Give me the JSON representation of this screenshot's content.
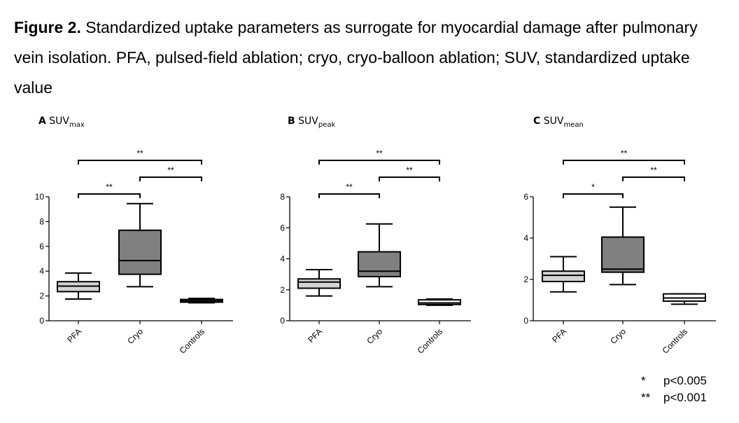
{
  "caption": {
    "label": "Figure 2.",
    "text": " Standardized uptake parameters as surrogate for myocardial damage after pulmonary vein isolation. PFA, pulsed-field ablation; cryo, cryo-balloon ablation; SUV, standardized uptake value"
  },
  "legend": [
    {
      "symbol": "*",
      "text": "p<0.005"
    },
    {
      "symbol": "**",
      "text": "p<0.001"
    }
  ],
  "colors": {
    "PFA": "#d4d4d4",
    "Cryo": "#808080",
    "Controls": "#ffffff",
    "stroke": "#000000"
  },
  "chart_data": [
    {
      "type": "boxplot",
      "panel": "A",
      "title_main": "SUV",
      "title_sub": "max",
      "categories": [
        "PFA",
        "Cryo",
        "Controls"
      ],
      "ylim": [
        0,
        10
      ],
      "yticks": [
        0,
        2,
        4,
        6,
        8,
        10
      ],
      "boxes": [
        {
          "name": "PFA",
          "min": 1.75,
          "q1": 2.35,
          "median": 2.8,
          "q3": 3.15,
          "max": 3.85
        },
        {
          "name": "Cryo",
          "min": 2.75,
          "q1": 3.75,
          "median": 4.85,
          "q3": 7.3,
          "max": 9.45
        },
        {
          "name": "Controls",
          "min": 1.45,
          "q1": 1.5,
          "median": 1.6,
          "q3": 1.72,
          "max": 1.8
        }
      ],
      "significance": [
        {
          "from": "PFA",
          "to": "Cryo",
          "label": "**"
        },
        {
          "from": "Cryo",
          "to": "Controls",
          "label": "**"
        },
        {
          "from": "PFA",
          "to": "Controls",
          "label": "**"
        }
      ]
    },
    {
      "type": "boxplot",
      "panel": "B",
      "title_main": "SUV",
      "title_sub": "peak",
      "categories": [
        "PFA",
        "Cryo",
        "Controls"
      ],
      "ylim": [
        0,
        8
      ],
      "yticks": [
        0,
        2,
        4,
        6,
        8
      ],
      "boxes": [
        {
          "name": "PFA",
          "min": 1.6,
          "q1": 2.1,
          "median": 2.5,
          "q3": 2.7,
          "max": 3.3
        },
        {
          "name": "Cryo",
          "min": 2.2,
          "q1": 2.85,
          "median": 3.2,
          "q3": 4.45,
          "max": 6.25
        },
        {
          "name": "Controls",
          "min": 1.0,
          "q1": 1.05,
          "median": 1.15,
          "q3": 1.35,
          "max": 1.4
        }
      ],
      "significance": [
        {
          "from": "PFA",
          "to": "Cryo",
          "label": "**"
        },
        {
          "from": "Cryo",
          "to": "Controls",
          "label": "**"
        },
        {
          "from": "PFA",
          "to": "Controls",
          "label": "**"
        }
      ]
    },
    {
      "type": "boxplot",
      "panel": "C",
      "title_main": "SUV",
      "title_sub": "mean",
      "categories": [
        "PFA",
        "Cryo",
        "Controls"
      ],
      "ylim": [
        0,
        6
      ],
      "yticks": [
        0,
        2,
        4,
        6
      ],
      "boxes": [
        {
          "name": "PFA",
          "min": 1.4,
          "q1": 1.9,
          "median": 2.2,
          "q3": 2.4,
          "max": 3.1
        },
        {
          "name": "Cryo",
          "min": 1.75,
          "q1": 2.35,
          "median": 2.5,
          "q3": 4.05,
          "max": 5.5
        },
        {
          "name": "Controls",
          "min": 0.8,
          "q1": 0.95,
          "median": 1.1,
          "q3": 1.3,
          "max": 1.3
        }
      ],
      "significance": [
        {
          "from": "PFA",
          "to": "Cryo",
          "label": "*"
        },
        {
          "from": "Cryo",
          "to": "Controls",
          "label": "**"
        },
        {
          "from": "PFA",
          "to": "Controls",
          "label": "**"
        }
      ]
    }
  ]
}
